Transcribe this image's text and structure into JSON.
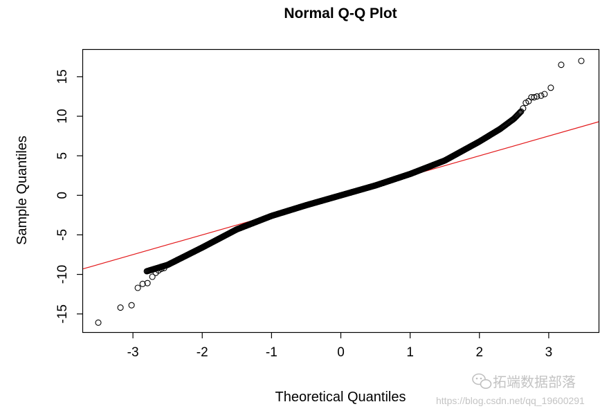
{
  "chart_data": {
    "type": "scatter",
    "title": "Normal Q-Q Plot",
    "xlabel": "Theoretical Quantiles",
    "ylabel": "Sample Quantiles",
    "xlim": [
      -3.72,
      3.72
    ],
    "ylim": [
      -17.3,
      18.4
    ],
    "x_ticks": [
      -3,
      -2,
      -1,
      0,
      1,
      2,
      3
    ],
    "y_ticks": [
      -15,
      -10,
      -5,
      0,
      5,
      10,
      15
    ],
    "grid": false,
    "legend": "none",
    "reference_line": {
      "slope": 2.5,
      "intercept": 0,
      "color": "#e31a1c"
    },
    "point_style": {
      "marker": "open-circle",
      "color": "#000000"
    },
    "curve_knots": {
      "x": [
        -2.8,
        -2.5,
        -2.0,
        -1.5,
        -1.0,
        -0.5,
        0.0,
        0.5,
        1.0,
        1.5,
        2.0,
        2.3,
        2.5,
        2.6
      ],
      "y": [
        -9.6,
        -8.8,
        -6.6,
        -4.3,
        -2.6,
        -1.25,
        0.0,
        1.25,
        2.7,
        4.4,
        6.8,
        8.4,
        9.7,
        10.6
      ]
    },
    "tail_points": {
      "x": [
        -3.5,
        -3.18,
        -3.02,
        -2.93,
        -2.86,
        -2.79,
        -2.72,
        -2.67,
        -2.63,
        -2.59,
        -2.55,
        2.63,
        2.67,
        2.71,
        2.75,
        2.79,
        2.83,
        2.89,
        2.94,
        3.03,
        3.18,
        3.47
      ],
      "y": [
        -16.1,
        -14.2,
        -13.9,
        -11.7,
        -11.2,
        -11.1,
        -10.3,
        -9.8,
        -9.5,
        -9.3,
        -9.2,
        11.0,
        11.7,
        11.9,
        12.4,
        12.4,
        12.5,
        12.6,
        12.8,
        13.6,
        16.5,
        17.0
      ]
    }
  },
  "watermark": {
    "label": "拓端数据部落",
    "url": "https://blog.csdn.net/qq_19600291"
  }
}
